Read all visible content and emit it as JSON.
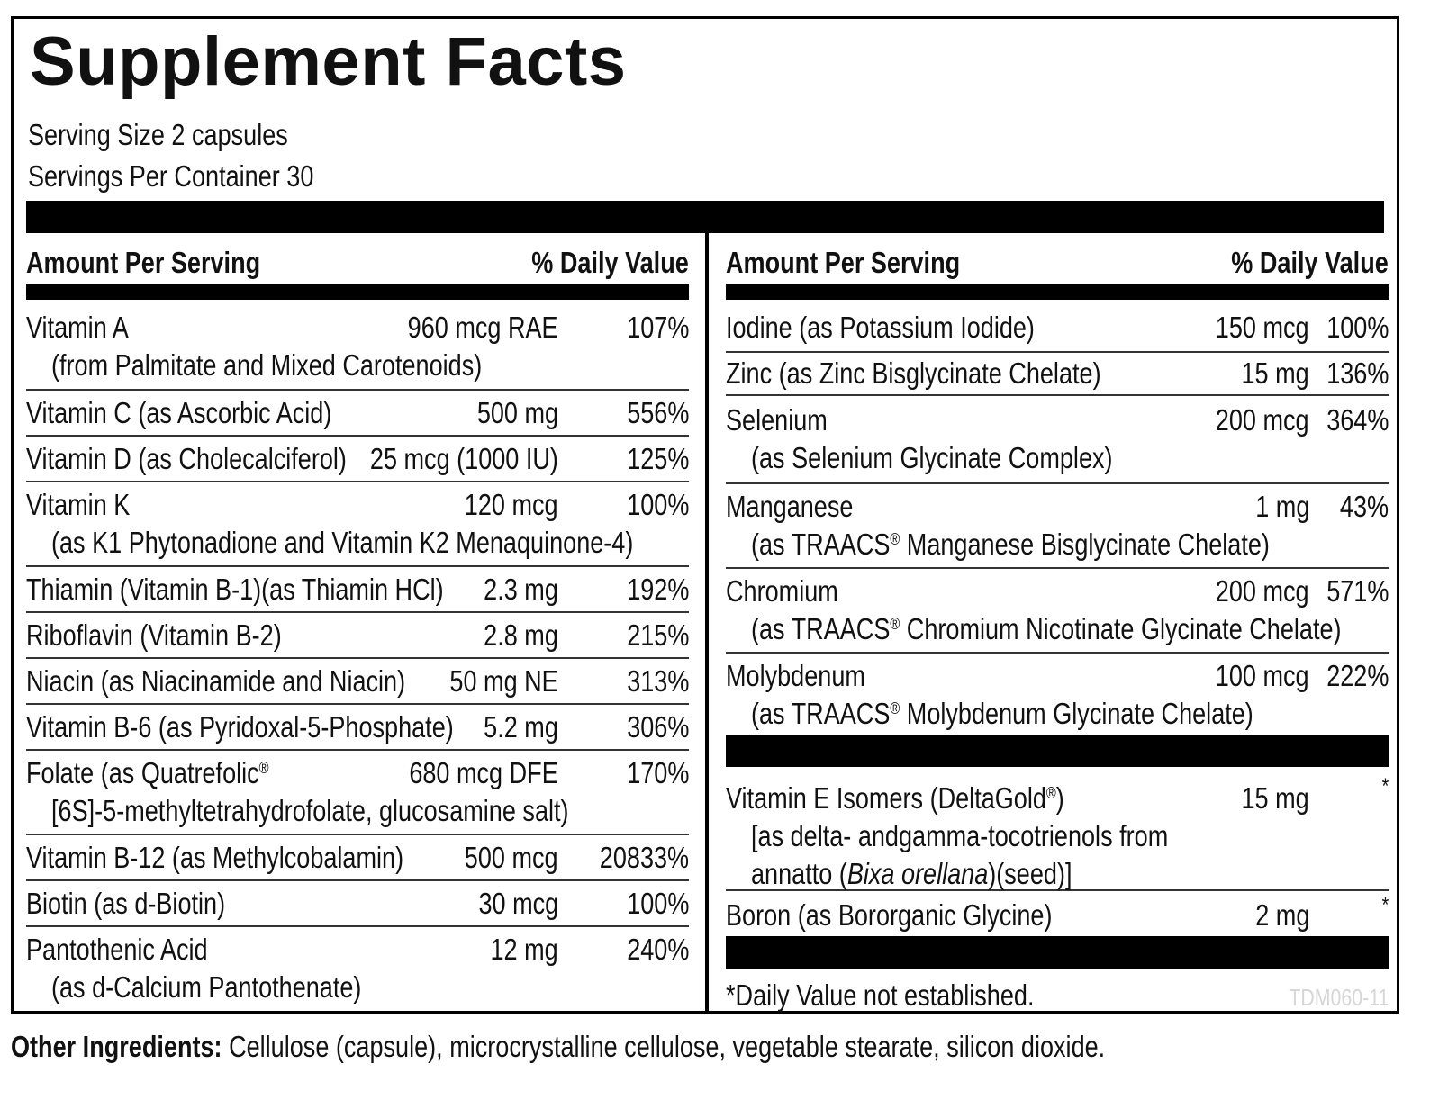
{
  "title": "Supplement Facts",
  "serving_size": "Serving Size 2 capsules",
  "servings_per_container": "Servings Per Container 30",
  "header_amount": "Amount Per Serving",
  "header_dv": "% Daily Value",
  "left_rows": [
    {
      "name": "Vitamin A",
      "amount": "960 mcg RAE",
      "dv": "107%",
      "sub": "(from Palmitate and Mixed Carotenoids)"
    },
    {
      "name": "Vitamin C (as Ascorbic Acid)",
      "amount": "500 mg",
      "dv": "556%"
    },
    {
      "name": "Vitamin D (as Cholecalciferol)",
      "amount": "25 mcg (1000 IU)",
      "dv": "125%"
    },
    {
      "name": "Vitamin K",
      "amount": "120 mcg",
      "dv": "100%",
      "sub": "(as K1 Phytonadione and Vitamin K2 Menaquinone-4)"
    },
    {
      "name": "Thiamin (Vitamin B-1)(as Thiamin HCl)",
      "amount": "2.3 mg",
      "dv": "192%"
    },
    {
      "name": "Riboflavin (Vitamin B-2)",
      "amount": "2.8 mg",
      "dv": "215%"
    },
    {
      "name": "Niacin (as Niacinamide and Niacin)",
      "amount": "50 mg NE",
      "dv": "313%"
    },
    {
      "name": "Vitamin B-6 (as Pyridoxal-5-Phosphate)",
      "amount": "5.2 mg",
      "dv": "306%"
    },
    {
      "name": "Folate (as Quatrefolic",
      "name_reg": "®",
      "amount": "680 mcg DFE",
      "dv": "170%",
      "sub": "[6S]-5-methyltetrahydrofolate, glucosamine salt)"
    },
    {
      "name": "Vitamin B-12 (as Methylcobalamin)",
      "amount": "500 mcg",
      "dv": "20833%"
    },
    {
      "name": "Biotin (as d-Biotin)",
      "amount": "30 mcg",
      "dv": "100%"
    },
    {
      "name": "Pantothenic Acid",
      "amount": "12 mg",
      "dv": "240%",
      "sub": "(as d-Calcium Pantothenate)"
    }
  ],
  "right_rows": [
    {
      "name": "Iodine (as Potassium Iodide)",
      "amount": "150 mcg",
      "dv": "100%"
    },
    {
      "name": "Zinc (as Zinc Bisglycinate Chelate)",
      "amount": "15 mg",
      "dv": "136%"
    },
    {
      "name": "Selenium",
      "amount": "200 mcg",
      "dv": "364%",
      "sub": "(as Selenium Glycinate Complex)"
    },
    {
      "name": "Manganese",
      "amount": "1 mg",
      "dv": "43%",
      "sub_pre": "(as TRAACS",
      "sub_reg": "®",
      "sub_post": " Manganese Bisglycinate Chelate)"
    },
    {
      "name": "Chromium",
      "amount": "200 mcg",
      "dv": "571%",
      "sub_pre": "(as TRAACS",
      "sub_reg": "®",
      "sub_post": " Chromium Nicotinate Glycinate Chelate)"
    },
    {
      "name": "Molybdenum",
      "amount": "100 mcg",
      "dv": "222%",
      "sub_pre": "(as TRAACS",
      "sub_reg": "®",
      "sub_post": " Molybdenum Glycinate Chelate)"
    }
  ],
  "vitamin_e": {
    "name_pre": "Vitamin E Isomers (DeltaGold",
    "name_reg": "®",
    "name_post": ")",
    "amount": "15 mg",
    "dv": "*",
    "line2": "[as delta- andgamma-tocotrienols from",
    "line3_pre": "annatto (",
    "line3_italic": "Bixa orellana",
    "line3_post": ")(seed)]"
  },
  "boron": {
    "name": "Boron (as Bororganic Glycine)",
    "amount": "2 mg",
    "dv": "*"
  },
  "footnote": "*Daily Value not established.",
  "code": "TDM060-11",
  "other_label": "Other Ingredients:",
  "other_text": " Cellulose (capsule), microcrystalline cellulose, vegetable stearate, silicon dioxide."
}
